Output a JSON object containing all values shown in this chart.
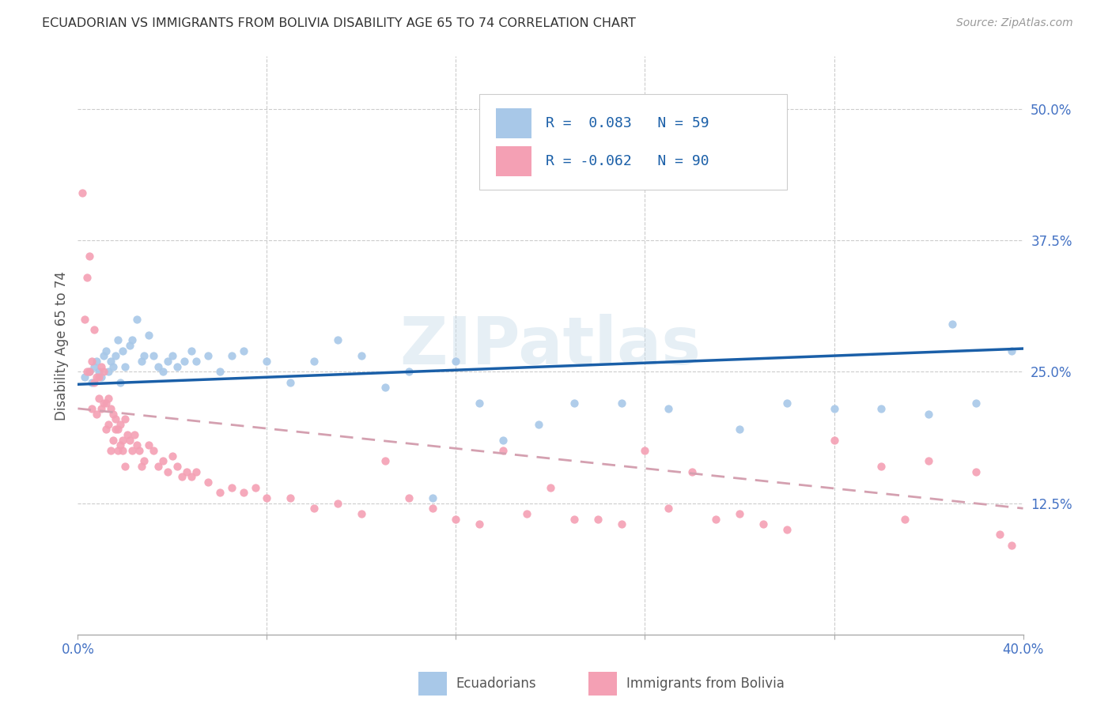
{
  "title": "ECUADORIAN VS IMMIGRANTS FROM BOLIVIA DISABILITY AGE 65 TO 74 CORRELATION CHART",
  "source": "Source: ZipAtlas.com",
  "ylabel": "Disability Age 65 to 74",
  "xlim": [
    0.0,
    0.4
  ],
  "ylim": [
    0.0,
    0.55
  ],
  "y_ticks_right": [
    0.125,
    0.25,
    0.375,
    0.5
  ],
  "y_tick_labels_right": [
    "12.5%",
    "25.0%",
    "37.5%",
    "50.0%"
  ],
  "watermark": "ZIPatlas",
  "color_blue": "#a8c8e8",
  "color_pink": "#f4a0b4",
  "color_line_blue": "#1a5fa8",
  "color_line_pink": "#d4a0b0",
  "ecu_x": [
    0.003,
    0.005,
    0.006,
    0.007,
    0.008,
    0.009,
    0.01,
    0.011,
    0.012,
    0.013,
    0.014,
    0.015,
    0.016,
    0.017,
    0.018,
    0.019,
    0.02,
    0.022,
    0.023,
    0.025,
    0.027,
    0.028,
    0.03,
    0.032,
    0.034,
    0.036,
    0.038,
    0.04,
    0.042,
    0.045,
    0.048,
    0.05,
    0.055,
    0.06,
    0.065,
    0.07,
    0.08,
    0.09,
    0.1,
    0.11,
    0.12,
    0.13,
    0.14,
    0.15,
    0.16,
    0.17,
    0.18,
    0.195,
    0.21,
    0.23,
    0.25,
    0.28,
    0.3,
    0.32,
    0.34,
    0.36,
    0.37,
    0.38,
    0.395
  ],
  "ecu_y": [
    0.245,
    0.25,
    0.24,
    0.255,
    0.26,
    0.25,
    0.245,
    0.265,
    0.27,
    0.25,
    0.26,
    0.255,
    0.265,
    0.28,
    0.24,
    0.27,
    0.255,
    0.275,
    0.28,
    0.3,
    0.26,
    0.265,
    0.285,
    0.265,
    0.255,
    0.25,
    0.26,
    0.265,
    0.255,
    0.26,
    0.27,
    0.26,
    0.265,
    0.25,
    0.265,
    0.27,
    0.26,
    0.24,
    0.26,
    0.28,
    0.265,
    0.235,
    0.25,
    0.13,
    0.26,
    0.22,
    0.185,
    0.2,
    0.22,
    0.22,
    0.215,
    0.195,
    0.22,
    0.215,
    0.215,
    0.21,
    0.295,
    0.22,
    0.27
  ],
  "bol_x": [
    0.002,
    0.003,
    0.004,
    0.004,
    0.005,
    0.005,
    0.006,
    0.006,
    0.007,
    0.007,
    0.008,
    0.008,
    0.009,
    0.009,
    0.01,
    0.01,
    0.011,
    0.011,
    0.012,
    0.012,
    0.013,
    0.013,
    0.014,
    0.014,
    0.015,
    0.015,
    0.016,
    0.016,
    0.017,
    0.017,
    0.018,
    0.018,
    0.019,
    0.019,
    0.02,
    0.02,
    0.021,
    0.022,
    0.023,
    0.024,
    0.025,
    0.026,
    0.027,
    0.028,
    0.03,
    0.032,
    0.034,
    0.036,
    0.038,
    0.04,
    0.042,
    0.044,
    0.046,
    0.048,
    0.05,
    0.055,
    0.06,
    0.065,
    0.07,
    0.075,
    0.08,
    0.09,
    0.1,
    0.11,
    0.12,
    0.13,
    0.14,
    0.15,
    0.16,
    0.17,
    0.18,
    0.19,
    0.2,
    0.21,
    0.22,
    0.23,
    0.24,
    0.25,
    0.26,
    0.27,
    0.28,
    0.29,
    0.3,
    0.32,
    0.34,
    0.35,
    0.36,
    0.38,
    0.39,
    0.395
  ],
  "bol_y": [
    0.42,
    0.3,
    0.34,
    0.25,
    0.25,
    0.36,
    0.26,
    0.215,
    0.24,
    0.29,
    0.245,
    0.21,
    0.245,
    0.225,
    0.255,
    0.215,
    0.25,
    0.22,
    0.22,
    0.195,
    0.225,
    0.2,
    0.215,
    0.175,
    0.21,
    0.185,
    0.205,
    0.195,
    0.195,
    0.175,
    0.2,
    0.18,
    0.185,
    0.175,
    0.205,
    0.16,
    0.19,
    0.185,
    0.175,
    0.19,
    0.18,
    0.175,
    0.16,
    0.165,
    0.18,
    0.175,
    0.16,
    0.165,
    0.155,
    0.17,
    0.16,
    0.15,
    0.155,
    0.15,
    0.155,
    0.145,
    0.135,
    0.14,
    0.135,
    0.14,
    0.13,
    0.13,
    0.12,
    0.125,
    0.115,
    0.165,
    0.13,
    0.12,
    0.11,
    0.105,
    0.175,
    0.115,
    0.14,
    0.11,
    0.11,
    0.105,
    0.175,
    0.12,
    0.155,
    0.11,
    0.115,
    0.105,
    0.1,
    0.185,
    0.16,
    0.11,
    0.165,
    0.155,
    0.095,
    0.085
  ],
  "ecu_line_x": [
    0.0,
    0.4
  ],
  "ecu_line_y": [
    0.238,
    0.272
  ],
  "bol_line_x": [
    0.0,
    0.4
  ],
  "bol_line_y": [
    0.215,
    0.12
  ]
}
